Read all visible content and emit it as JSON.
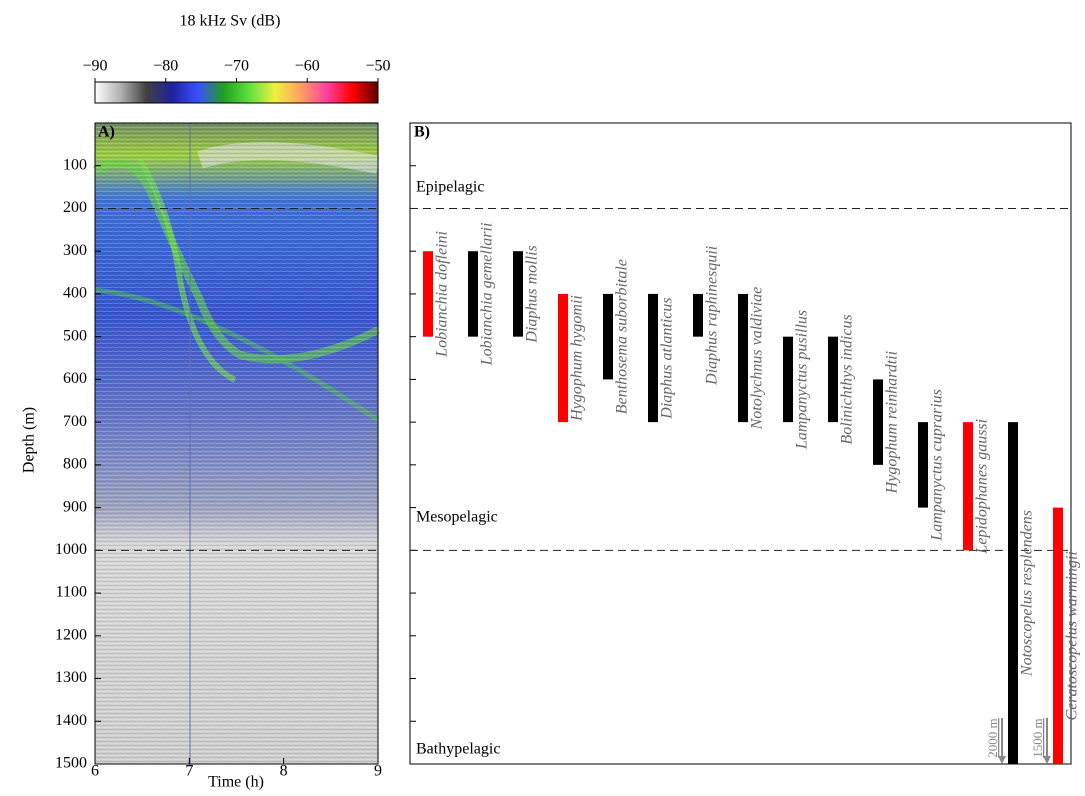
{
  "chart_data": [
    {
      "type": "echogram",
      "panel_label": "A)",
      "colorbar": {
        "title": "18 kHz Sv (dB)",
        "lim": [
          -90,
          -50
        ],
        "ticks": [
          {
            "value": -90,
            "label": "−90"
          },
          {
            "value": -80,
            "label": "−80"
          },
          {
            "value": -70,
            "label": "−70"
          },
          {
            "value": -60,
            "label": "−60"
          },
          {
            "value": -50,
            "label": "−50"
          }
        ],
        "colors": [
          "#ffffff",
          "#b0b0b0",
          "#404040",
          "#2020a0",
          "#3a50ff",
          "#20a020",
          "#60e040",
          "#f0f040",
          "#ffa060",
          "#ff40a0",
          "#ff0000",
          "#600000"
        ]
      },
      "xlabel": "Time (h)",
      "ylabel": "Depth (m)",
      "xlim": [
        6,
        9
      ],
      "xticks": [
        6,
        7,
        8,
        9
      ],
      "ylim": [
        1500,
        0
      ],
      "yticks": [
        100,
        200,
        300,
        400,
        500,
        600,
        700,
        800,
        900,
        1000,
        1100,
        1200,
        1300,
        1400,
        1500
      ],
      "zone_lines": [
        200,
        1000
      ]
    },
    {
      "type": "range",
      "panel_label": "B)",
      "categories": [
        "Lobianchia dofleini",
        "Lobianchia gemellarii",
        "Diaphus mollis",
        "Hygophum hygomii",
        "Benthosema suborbitale",
        "Diaphus atlanticus",
        "Diaphus raphinesquii",
        "Notolychnus valdiviae",
        "Lampanyctus pusillus",
        "Bolinichthys indicus",
        "Hygophum reinhardtii",
        "Lampanyctus cuprarius",
        "Lepidophanes gaussi",
        "Notoscopelus resplendens",
        "Ceratoscopelus warmingii"
      ],
      "low": [
        300,
        300,
        300,
        400,
        400,
        400,
        400,
        400,
        500,
        500,
        600,
        700,
        700,
        700,
        900
      ],
      "high": [
        500,
        500,
        500,
        700,
        600,
        700,
        500,
        700,
        700,
        700,
        800,
        900,
        1000,
        1500,
        1500
      ],
      "colors": [
        "#ff0000",
        "#000000",
        "#000000",
        "#ff0000",
        "#000000",
        "#000000",
        "#000000",
        "#000000",
        "#000000",
        "#000000",
        "#000000",
        "#000000",
        "#ff0000",
        "#000000",
        "#ff0000"
      ],
      "ylim": [
        1500,
        0
      ],
      "yticks": [
        100,
        200,
        300,
        400,
        500,
        600,
        700,
        800,
        900,
        1000,
        1100,
        1200,
        1300,
        1400,
        1500
      ],
      "zone_lines": [
        200,
        1000
      ],
      "zone_labels": [
        "Epipelagic",
        "Mesopelagic",
        "Bathypelagic"
      ],
      "annotations": [
        {
          "value": 2000,
          "label": "2000 m"
        },
        {
          "value": 1500,
          "label": "1500 m"
        }
      ]
    }
  ]
}
